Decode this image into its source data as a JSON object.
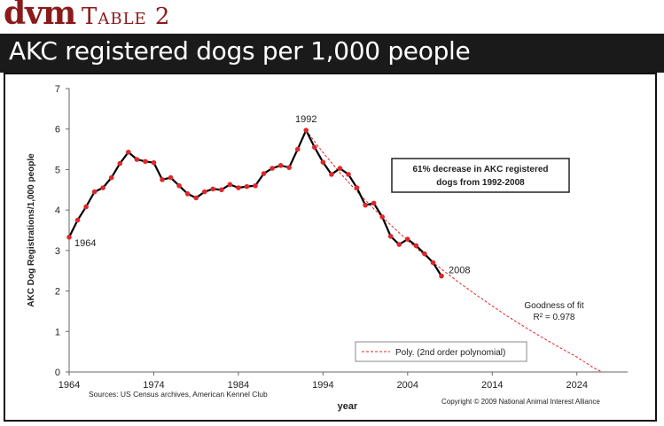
{
  "header": {
    "brand": "dvm",
    "table_label": "Table 2",
    "title": "AKC registered dogs per 1,000 people"
  },
  "colors": {
    "brand": "#8b1a1a",
    "title_bar": "#1a1a1a",
    "line": "#000000",
    "marker": "#e0262b",
    "trend": "#e0262b"
  },
  "chart_data": {
    "type": "line",
    "title": "AKC registered dogs per 1,000 people",
    "xlabel": "year",
    "ylabel": "AKC Dog Registrations/1,000 people",
    "xlim": [
      1964,
      2030
    ],
    "ylim": [
      0,
      7
    ],
    "xticks": [
      1964,
      1974,
      1984,
      1994,
      2004,
      2014,
      2024
    ],
    "yticks": [
      0,
      1,
      2,
      3,
      4,
      5,
      6,
      7
    ],
    "grid": false,
    "legend_position": "bottom-center",
    "series": [
      {
        "x": [
          1964,
          1965,
          1966,
          1967,
          1968,
          1969,
          1970,
          1971,
          1972,
          1973,
          1974,
          1975,
          1976,
          1977,
          1978,
          1979,
          1980,
          1981,
          1982,
          1983,
          1984,
          1985,
          1986,
          1987,
          1988,
          1989,
          1990,
          1991,
          1992,
          1993,
          1994,
          1995,
          1996,
          1997,
          1998,
          1999,
          2000,
          2001,
          2002,
          2003,
          2004,
          2005,
          2006,
          2007,
          2008
        ],
        "values": [
          3.33,
          3.75,
          4.08,
          4.45,
          4.55,
          4.8,
          5.15,
          5.43,
          5.25,
          5.2,
          5.17,
          4.75,
          4.8,
          4.6,
          4.4,
          4.3,
          4.45,
          4.52,
          4.5,
          4.63,
          4.55,
          4.58,
          4.6,
          4.9,
          5.03,
          5.1,
          5.05,
          5.5,
          5.97,
          5.55,
          5.18,
          4.88,
          5.03,
          4.88,
          4.55,
          4.12,
          4.17,
          3.83,
          3.35,
          3.15,
          3.28,
          3.12,
          2.92,
          2.7,
          2.37
        ]
      },
      {
        "name": "Poly. (2nd order polynomial)",
        "type": "trend",
        "x": [
          1992,
          1994,
          1996,
          1998,
          2000,
          2002,
          2004,
          2006,
          2008,
          2010,
          2012,
          2014,
          2016,
          2018,
          2020,
          2022,
          2024,
          2026,
          2027
        ],
        "values": [
          5.97,
          5.42,
          4.92,
          4.46,
          4.03,
          3.63,
          3.25,
          2.88,
          2.54,
          2.22,
          1.92,
          1.63,
          1.35,
          1.09,
          0.84,
          0.6,
          0.37,
          0.1,
          0.0
        ]
      }
    ],
    "annotations": {
      "start_label": "1964",
      "peak_label": "1992",
      "end_label": "2008",
      "callout_line1": "61% decrease in AKC registered",
      "callout_line2": "dogs from 1992-2008",
      "fit_line1": "Goodness of fit",
      "fit_line2": "R² = 0.978"
    },
    "sources": "Sources: US Census archives, American Kennel Club",
    "copyright": "Copyright © 2009 National Animal Interest Alliance"
  }
}
